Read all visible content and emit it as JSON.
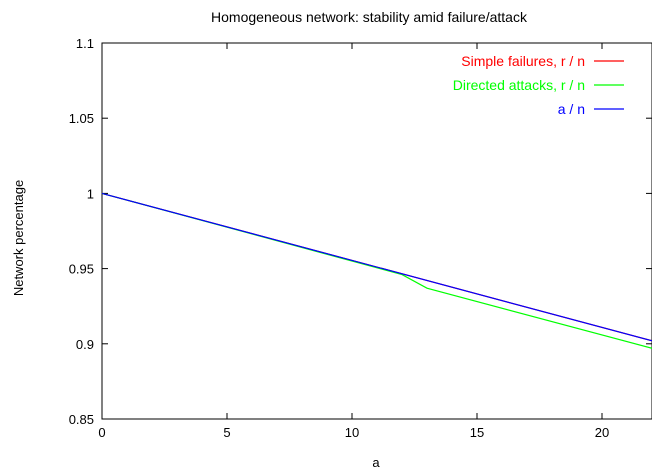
{
  "chart_data": {
    "type": "line",
    "title": "Homogeneous network: stability amid failure/attack",
    "xlabel": "a",
    "ylabel": "Network percentage",
    "xlim": [
      0,
      22
    ],
    "ylim": [
      0.85,
      1.1
    ],
    "x_ticks": [
      0,
      5,
      10,
      15,
      20
    ],
    "x_tick_labels": [
      "0",
      "5",
      "10",
      "15",
      "20"
    ],
    "y_ticks": [
      0.85,
      0.9,
      0.95,
      1,
      1.05,
      1.1
    ],
    "y_tick_labels": [
      "0.85",
      "0.9",
      "0.95",
      "1",
      "1.05",
      "1.1"
    ],
    "grid": false,
    "legend_position": "top-right",
    "series": [
      {
        "name": "Simple failures, r / n",
        "color": "#ff0000",
        "x": [
          0,
          22
        ],
        "values": [
          1.0,
          0.902
        ]
      },
      {
        "name": "Directed attacks, r / n",
        "color": "#00ff00",
        "x": [
          0,
          12,
          13,
          22
        ],
        "values": [
          1.0,
          0.946,
          0.937,
          0.897
        ]
      },
      {
        "name": "a / n",
        "color": "#0000ff",
        "x": [
          0,
          22
        ],
        "values": [
          1.0,
          0.902
        ]
      }
    ]
  }
}
